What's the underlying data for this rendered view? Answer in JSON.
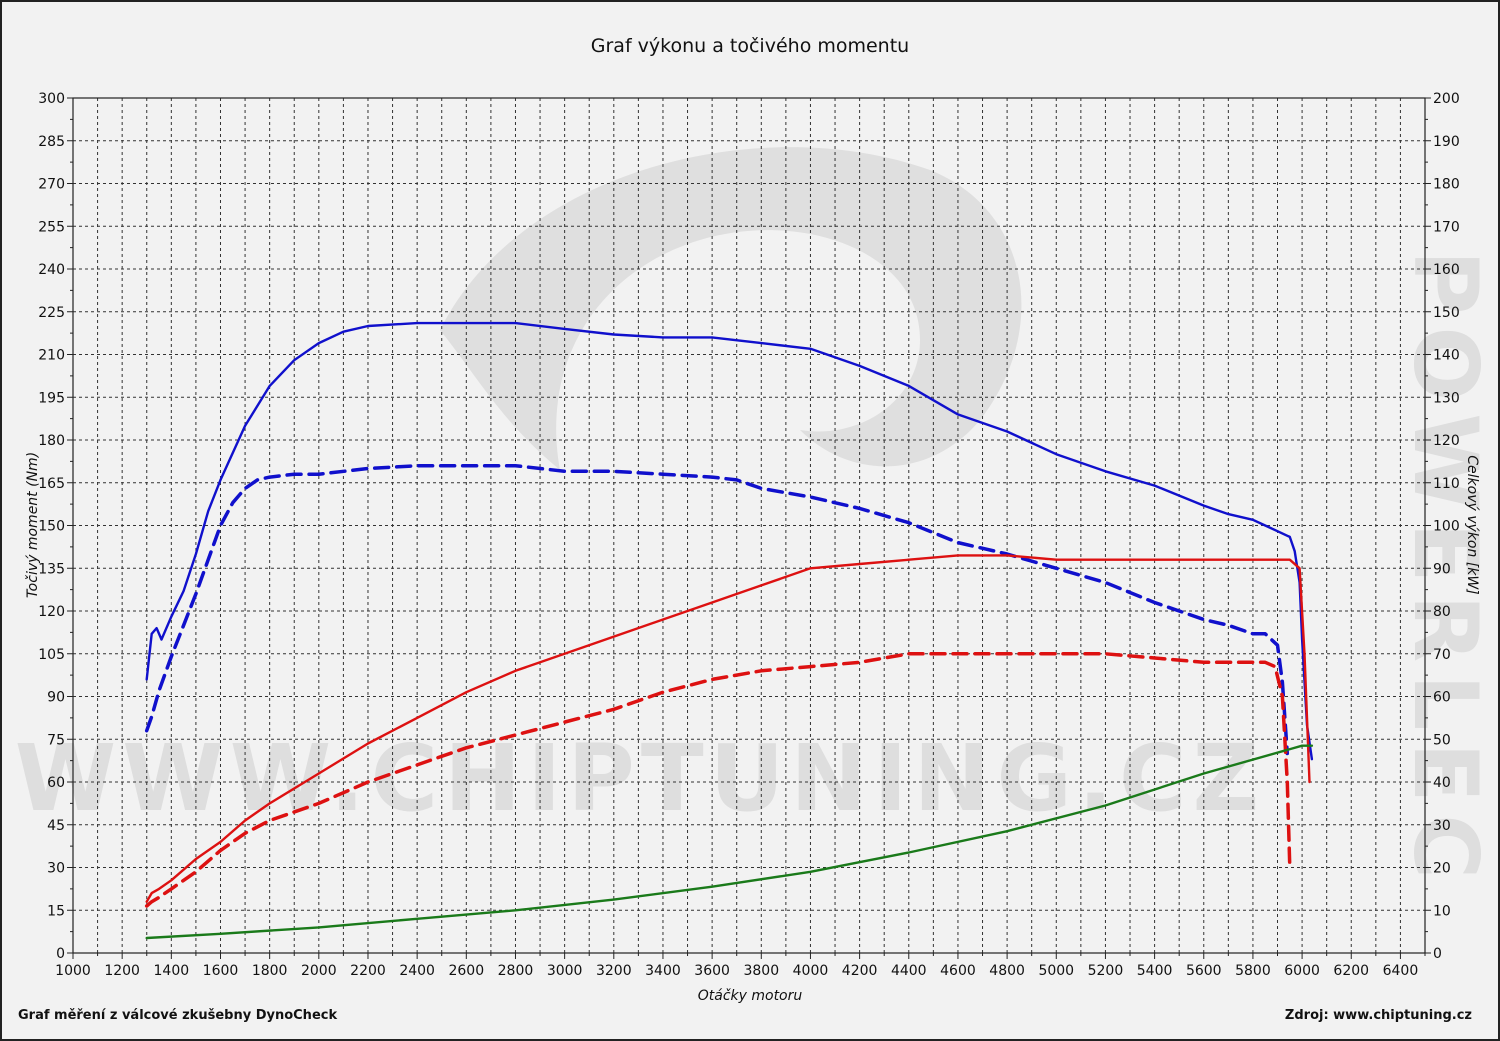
{
  "chart_data": {
    "type": "line",
    "title": "Graf výkonu a točivého momentu",
    "xlabel": "Otáčky motoru",
    "ylabel_left": "Točivý moment (Nm)",
    "ylabel_right": "Celkový výkon [kW]",
    "xlim": [
      1000,
      6500
    ],
    "ylim_left": [
      0,
      300
    ],
    "ylim_right": [
      0,
      200
    ],
    "x_ticks": [
      "1000",
      "1200",
      "1400",
      "1600",
      "1800",
      "2000",
      "2200",
      "2400",
      "2600",
      "2800",
      "3000",
      "3200",
      "3400",
      "3600",
      "3800",
      "4000",
      "4200",
      "4400",
      "4600",
      "4800",
      "5000",
      "5200",
      "5400",
      "5600",
      "5800",
      "6000",
      "6200",
      "6400"
    ],
    "y_left_ticks": [
      "0",
      "15",
      "30",
      "45",
      "60",
      "75",
      "90",
      "105",
      "120",
      "135",
      "150",
      "165",
      "180",
      "195",
      "210",
      "225",
      "240",
      "255",
      "270",
      "285",
      "300"
    ],
    "y_right_ticks": [
      "0",
      "10",
      "20",
      "30",
      "40",
      "50",
      "60",
      "70",
      "80",
      "90",
      "100",
      "110",
      "120",
      "130",
      "140",
      "150",
      "160",
      "170",
      "180",
      "190",
      "200"
    ],
    "grid": true,
    "series": [
      {
        "color": "#1010cc",
        "style": "solid",
        "axis": "left",
        "x": [
          1300,
          1320,
          1340,
          1360,
          1400,
          1450,
          1500,
          1550,
          1600,
          1700,
          1800,
          1900,
          2000,
          2100,
          2200,
          2400,
          2600,
          2800,
          3000,
          3200,
          3400,
          3600,
          3800,
          4000,
          4200,
          4400,
          4600,
          4800,
          5000,
          5200,
          5400,
          5600,
          5700,
          5800,
          5850,
          5900,
          5950,
          5970,
          5990,
          6000,
          6020,
          6040
        ],
        "y": [
          96,
          112,
          114,
          110,
          118,
          127,
          140,
          155,
          166,
          185,
          199,
          208,
          214,
          218,
          220,
          221,
          221,
          221,
          219,
          217,
          216,
          216,
          214,
          212,
          206,
          199,
          189,
          183,
          175,
          169,
          164,
          157,
          154,
          152,
          150,
          148,
          146,
          141,
          130,
          110,
          80,
          68
        ]
      },
      {
        "color": "#1010cc",
        "style": "dashed",
        "axis": "left",
        "x": [
          1300,
          1320,
          1350,
          1400,
          1450,
          1500,
          1550,
          1600,
          1650,
          1700,
          1750,
          1800,
          1900,
          2000,
          2200,
          2400,
          2600,
          2800,
          3000,
          3200,
          3400,
          3600,
          3700,
          3800,
          4000,
          4200,
          4400,
          4600,
          4800,
          5000,
          5200,
          5400,
          5600,
          5700,
          5800,
          5850,
          5900,
          5920,
          5940
        ],
        "y": [
          78,
          83,
          92,
          104,
          115,
          126,
          138,
          150,
          158,
          163,
          166,
          167,
          168,
          168,
          170,
          171,
          171,
          171,
          169,
          169,
          168,
          167,
          166,
          163,
          160,
          156,
          151,
          144,
          140,
          135,
          130,
          123,
          117,
          115,
          112,
          112,
          108,
          95,
          70
        ]
      },
      {
        "color": "#dd1111",
        "style": "solid",
        "axis": "right",
        "x": [
          1300,
          1320,
          1350,
          1400,
          1500,
          1600,
          1700,
          1800,
          2000,
          2200,
          2400,
          2600,
          2800,
          3000,
          3200,
          3400,
          3600,
          3800,
          4000,
          4200,
          4400,
          4600,
          4800,
          5000,
          5200,
          5400,
          5600,
          5700,
          5800,
          5850,
          5900,
          5950,
          5990,
          6010,
          6030
        ],
        "y": [
          12,
          14,
          15,
          17,
          22,
          26,
          31,
          35,
          42,
          49,
          55,
          61,
          66,
          70,
          74,
          78,
          82,
          86,
          90,
          91,
          92,
          93,
          93,
          92,
          92,
          92,
          92,
          92,
          92,
          92,
          92,
          92,
          90,
          70,
          40
        ]
      },
      {
        "color": "#dd1111",
        "style": "dashed",
        "axis": "right",
        "x": [
          1300,
          1320,
          1350,
          1400,
          1500,
          1600,
          1700,
          1800,
          2000,
          2200,
          2400,
          2600,
          2800,
          3000,
          3200,
          3400,
          3600,
          3800,
          4000,
          4200,
          4400,
          4600,
          4800,
          5000,
          5200,
          5400,
          5600,
          5700,
          5800,
          5850,
          5890,
          5920,
          5940,
          5950
        ],
        "y": [
          11,
          12,
          13,
          15,
          19,
          24,
          28,
          31,
          35,
          40,
          44,
          48,
          51,
          54,
          57,
          61,
          64,
          66,
          67,
          68,
          70,
          70,
          70,
          70,
          70,
          69,
          68,
          68,
          68,
          68,
          67,
          60,
          40,
          20
        ]
      },
      {
        "color": "#1a7a1a",
        "style": "solid",
        "axis": "right",
        "x": [
          1300,
          1600,
          2000,
          2400,
          2800,
          3200,
          3600,
          4000,
          4400,
          4800,
          5200,
          5600,
          6000,
          6040
        ],
        "y": [
          3.5,
          4.5,
          6,
          8,
          10,
          12.5,
          15.5,
          19,
          23.5,
          28.5,
          34.5,
          42,
          48.5,
          48.5
        ]
      }
    ]
  },
  "footer": {
    "left": "Graf měření z válcové zkušebny DynoCheck",
    "right": "Zdroj: www.chiptuning.cz"
  },
  "watermark": {
    "site": "WWW.CHIPTUNING.CZ",
    "brand": "POWERLEC"
  }
}
